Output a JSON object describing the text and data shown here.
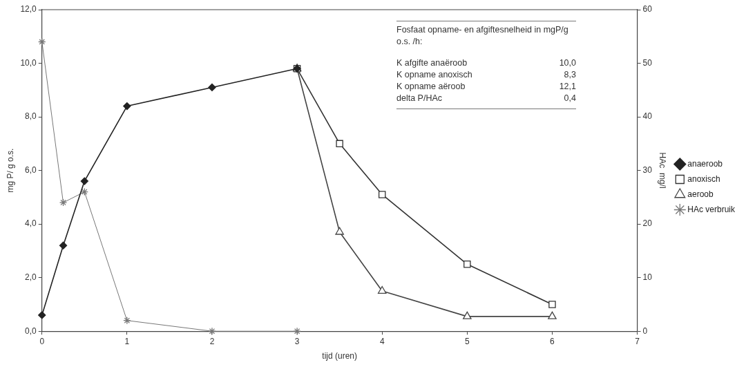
{
  "chart_data": {
    "type": "line",
    "xlabel": "tijd (uren)",
    "ylabel": "mg P/ g o.s.",
    "y2label": "HAc  mg/l",
    "xlim": [
      0,
      7
    ],
    "xticks": [
      0,
      1,
      2,
      3,
      4,
      5,
      6,
      7
    ],
    "ylim": [
      0,
      12
    ],
    "yticks": [
      {
        "value": 0,
        "label": "0,0"
      },
      {
        "value": 2,
        "label": "2,0"
      },
      {
        "value": 4,
        "label": "4,0"
      },
      {
        "value": 6,
        "label": "6,0"
      },
      {
        "value": 8,
        "label": "8,0"
      },
      {
        "value": 10,
        "label": "10,0"
      },
      {
        "value": 12,
        "label": "12,0"
      }
    ],
    "y2lim": [
      0,
      60
    ],
    "y2ticks": [
      0,
      10,
      20,
      30,
      40,
      50,
      60
    ],
    "grid": false,
    "legend": "right",
    "line_style": "solid",
    "series": [
      {
        "name": "anaeroob",
        "color": "#222222",
        "marker": "diamond",
        "x": [
          0,
          0.25,
          0.5,
          1,
          2,
          3
        ],
        "values": [
          0.6,
          3.2,
          5.6,
          8.4,
          9.1,
          9.8
        ]
      },
      {
        "name": "anoxisch",
        "color": "#333333",
        "marker": "square",
        "x": [
          3,
          3.5,
          4,
          5,
          6
        ],
        "values": [
          9.8,
          7.0,
          5.1,
          2.5,
          1.0
        ]
      },
      {
        "name": "aeroob",
        "color": "#444444",
        "marker": "triangle",
        "x": [
          3,
          3.5,
          4,
          5,
          6
        ],
        "values": [
          9.8,
          3.7,
          1.5,
          0.55,
          0.55
        ]
      },
      {
        "name": "HAc verbruik",
        "color": "#777777",
        "marker": "cross",
        "axis": "y2",
        "x": [
          0,
          0.25,
          0.5,
          1,
          2,
          3
        ],
        "values": [
          54,
          24,
          26,
          2,
          0,
          0
        ]
      }
    ],
    "annotations": [
      "Fosfaat opname- en afgiftesnelheid in mgP/g o.s. /h:",
      "K afgifte anaëroob 10,0",
      "K opname anoxisch 8,3",
      "K opname aëroob 12,1",
      "delta P/HAc 0,4"
    ]
  }
}
